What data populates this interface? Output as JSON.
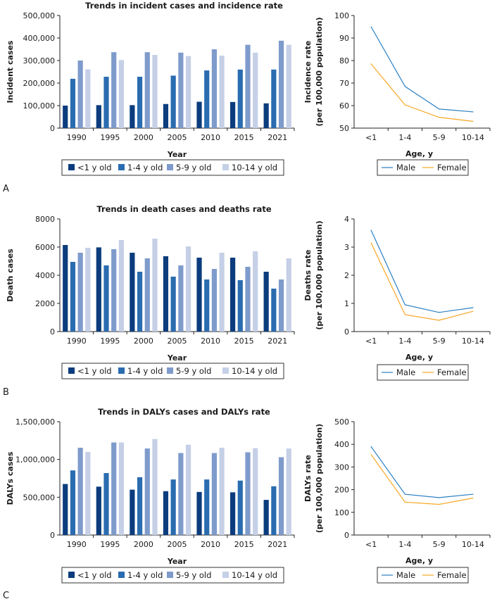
{
  "chart_data": [
    {
      "panel": "A",
      "type": "bar",
      "title": "Trends in incident cases and incidence rate",
      "xlabel": "Year",
      "ylabel": "Incident cases",
      "categories": [
        "1990",
        "1995",
        "2000",
        "2005",
        "2010",
        "2015",
        "2021"
      ],
      "ylim": [
        0,
        500000
      ],
      "yticks": [
        "0",
        "100,000",
        "200,000",
        "300,000",
        "400,000",
        "500,000"
      ],
      "ytick_values": [
        0,
        100000,
        200000,
        300000,
        400000,
        500000
      ],
      "series": [
        {
          "name": "<1 y old",
          "color": "#0b3c7d",
          "values": [
            100000,
            102000,
            102000,
            107000,
            117000,
            116000,
            110000
          ]
        },
        {
          "name": "1-4 y old",
          "color": "#2a6cb0",
          "values": [
            219000,
            228000,
            228000,
            233000,
            256000,
            260000,
            260000
          ]
        },
        {
          "name": "5-9 y old",
          "color": "#7e9bcb",
          "values": [
            300000,
            337000,
            337000,
            335000,
            350000,
            370000,
            388000
          ]
        },
        {
          "name": "10-14 y old",
          "color": "#c5d0e7",
          "values": [
            261000,
            302000,
            325000,
            320000,
            322000,
            335000,
            370000
          ]
        }
      ]
    },
    {
      "panel": "A",
      "type": "line",
      "title": "",
      "xlabel": "Age, y",
      "ylabel": "Incidence rate",
      "ylabel2": "(per 100,000 population)",
      "categories": [
        "<1",
        "1-4",
        "5-9",
        "10-14"
      ],
      "ylim": [
        50,
        100
      ],
      "yticks": [
        "50",
        "60",
        "70",
        "80",
        "90",
        "100"
      ],
      "ytick_values": [
        50,
        60,
        70,
        80,
        90,
        100
      ],
      "series": [
        {
          "name": "Male",
          "color": "#2a7fc1",
          "values": [
            95,
            68.5,
            58.5,
            57.2
          ]
        },
        {
          "name": "Female",
          "color": "#f5a623",
          "values": [
            78.5,
            60.3,
            54.8,
            53
          ]
        }
      ]
    },
    {
      "panel": "B",
      "type": "bar",
      "title": "Trends in death cases and deaths rate",
      "xlabel": "Year",
      "ylabel": "Death cases",
      "categories": [
        "1990",
        "1995",
        "2000",
        "2005",
        "2010",
        "2015",
        "2021"
      ],
      "ylim": [
        0,
        8000
      ],
      "yticks": [
        "0",
        "2000",
        "4000",
        "6000",
        "8000"
      ],
      "ytick_values": [
        0,
        2000,
        4000,
        6000,
        8000
      ],
      "series": [
        {
          "name": "<1 y old",
          "color": "#0b3c7d",
          "values": [
            6150,
            5980,
            5600,
            5350,
            5250,
            5250,
            4250
          ]
        },
        {
          "name": "1-4 y old",
          "color": "#2a6cb0",
          "values": [
            4950,
            4700,
            4250,
            3900,
            3700,
            3650,
            3050
          ]
        },
        {
          "name": "5-9 y old",
          "color": "#7e9bcb",
          "values": [
            5600,
            5850,
            5200,
            4700,
            4450,
            4600,
            3700
          ]
        },
        {
          "name": "10-14 y old",
          "color": "#c5d0e7",
          "values": [
            5950,
            6500,
            6600,
            6050,
            5600,
            5700,
            5200
          ]
        }
      ]
    },
    {
      "panel": "B",
      "type": "line",
      "title": "",
      "xlabel": "Age, y",
      "ylabel": "Deaths rate",
      "ylabel2": "(per 100,000 population)",
      "categories": [
        "<1",
        "1-4",
        "5-9",
        "10-14"
      ],
      "ylim": [
        0,
        4
      ],
      "yticks": [
        "0",
        "1",
        "2",
        "3",
        "4"
      ],
      "ytick_values": [
        0,
        1,
        2,
        3,
        4
      ],
      "series": [
        {
          "name": "Male",
          "color": "#2a7fc1",
          "values": [
            3.6,
            0.95,
            0.68,
            0.85
          ]
        },
        {
          "name": "Female",
          "color": "#f5a623",
          "values": [
            3.15,
            0.6,
            0.4,
            0.72
          ]
        }
      ]
    },
    {
      "panel": "C",
      "type": "bar",
      "title": "Trends in DALYs cases and DALYs rate",
      "xlabel": "Year",
      "ylabel": "DALYs cases",
      "categories": [
        "1990",
        "1995",
        "2000",
        "2005",
        "2010",
        "2015",
        "2021"
      ],
      "ylim": [
        0,
        1500000
      ],
      "yticks": [
        "0",
        "500,000",
        "1,000,000",
        "1,500,000"
      ],
      "ytick_values": [
        0,
        500000,
        1000000,
        1500000
      ],
      "series": [
        {
          "name": "<1 y old",
          "color": "#0b3c7d",
          "values": [
            675000,
            640000,
            600000,
            580000,
            570000,
            565000,
            465000
          ]
        },
        {
          "name": "1-4 y old",
          "color": "#2a6cb0",
          "values": [
            855000,
            820000,
            765000,
            735000,
            735000,
            720000,
            645000
          ]
        },
        {
          "name": "5-9 y old",
          "color": "#7e9bcb",
          "values": [
            1155000,
            1225000,
            1145000,
            1085000,
            1085000,
            1095000,
            1030000
          ]
        },
        {
          "name": "10-14 y old",
          "color": "#c5d0e7",
          "values": [
            1100000,
            1225000,
            1270000,
            1195000,
            1155000,
            1150000,
            1145000
          ]
        }
      ]
    },
    {
      "panel": "C",
      "type": "line",
      "title": "",
      "xlabel": "Age, y",
      "ylabel": "DALYs rate",
      "ylabel2": "(per 100,000 population)",
      "categories": [
        "<1",
        "1-4",
        "5-9",
        "10-14"
      ],
      "ylim": [
        0,
        500
      ],
      "yticks": [
        "0",
        "100",
        "200",
        "300",
        "400",
        "500"
      ],
      "ytick_values": [
        0,
        100,
        200,
        300,
        400,
        500
      ],
      "series": [
        {
          "name": "Male",
          "color": "#2a7fc1",
          "values": [
            390,
            180,
            165,
            180
          ]
        },
        {
          "name": "Female",
          "color": "#f5a623",
          "values": [
            355,
            145,
            135,
            163
          ]
        }
      ]
    }
  ],
  "panel_letters": [
    "A",
    "B",
    "C"
  ]
}
